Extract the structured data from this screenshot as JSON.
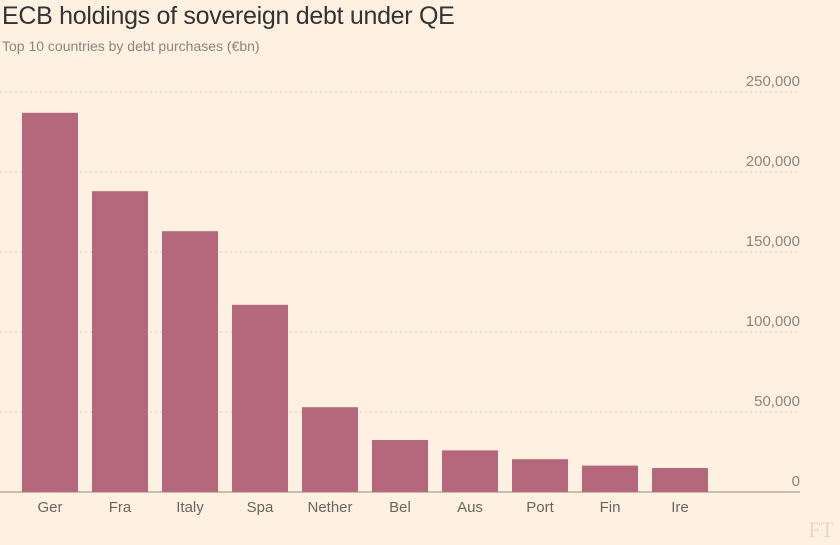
{
  "chart_data": {
    "type": "bar",
    "title": "ECB holdings of sovereign debt under QE",
    "subtitle": "Top 10 countries by debt purchases (€bn)",
    "categories": [
      "Ger",
      "Fra",
      "Italy",
      "Spa",
      "Nether",
      "Bel",
      "Aus",
      "Port",
      "Fin",
      "Ire"
    ],
    "values": [
      237000,
      188000,
      163000,
      117000,
      53000,
      32500,
      26000,
      20500,
      16500,
      15000
    ],
    "ylim": [
      0,
      250000
    ],
    "yticks": [
      0,
      50000,
      100000,
      150000,
      200000,
      250000
    ],
    "ytick_labels": [
      "0",
      "50,000",
      "100,000",
      "150,000",
      "200,000",
      "250,000"
    ],
    "y_axis_side": "right",
    "grid": true,
    "bar_color": "#b5687c",
    "background": "#fff1e1"
  },
  "source_logo": "FT"
}
